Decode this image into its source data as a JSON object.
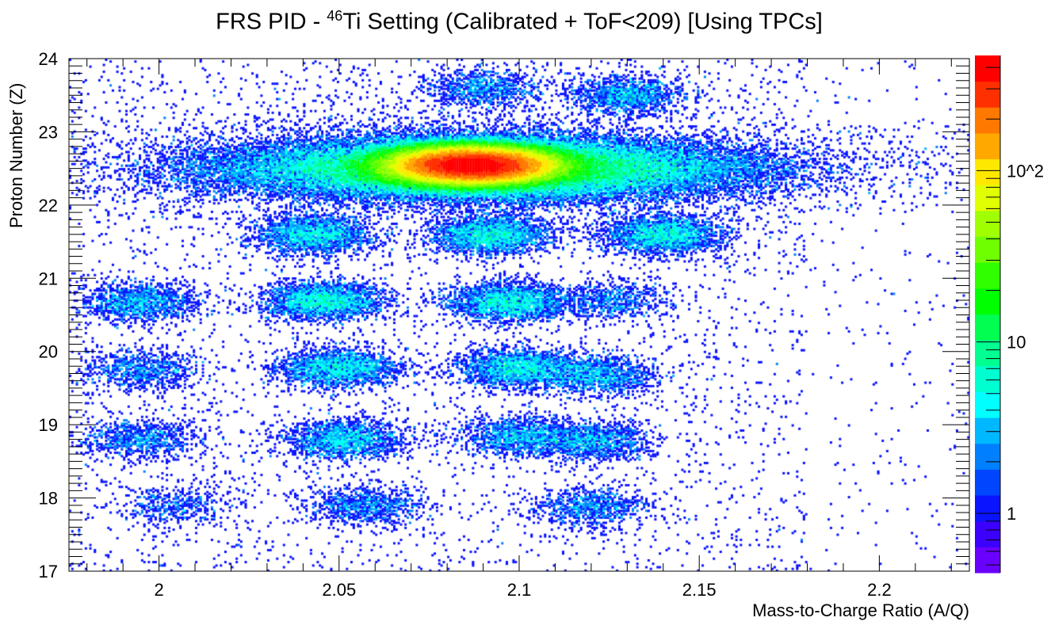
{
  "chart_data": {
    "type": "heatmap",
    "title_prefix": "FRS PID - ",
    "title_sup": "46",
    "title_suffix": "Ti Setting (Calibrated + ToF<209) [Using TPCs]",
    "xlabel": "Mass-to-Charge Ratio (A/Q)",
    "ylabel": "Proton Number (Z)",
    "xlim": [
      1.975,
      2.225
    ],
    "ylim": [
      17,
      24
    ],
    "xticks": [
      "2",
      "2.05",
      "2.1",
      "2.15",
      "2.2"
    ],
    "yticks": [
      "17",
      "18",
      "19",
      "20",
      "21",
      "22",
      "23",
      "24"
    ],
    "z_scale": "log",
    "zlim": [
      0.45,
      470
    ],
    "z_ticks": [
      "1",
      "10",
      "10^2"
    ],
    "grid": false,
    "palette": [
      "#6a00ff",
      "#3c00ff",
      "#0a14ff",
      "#0046ff",
      "#0080ff",
      "#00b8ff",
      "#00ffff",
      "#00ffd0",
      "#00ff90",
      "#00ff50",
      "#00ff00",
      "#30ff00",
      "#70ff00",
      "#a0ff00",
      "#e0ff00",
      "#ffe800",
      "#ffa800",
      "#ff7800",
      "#ff3000",
      "#ff0000"
    ],
    "clusters": [
      {
        "aq": 2.087,
        "z": 22.55,
        "peak": 450
      },
      {
        "aq": 2.09,
        "z": 22.5,
        "peak": 15
      },
      {
        "aq": 2.13,
        "z": 23.5,
        "peak": 3
      },
      {
        "aq": 2.09,
        "z": 23.6,
        "peak": 2
      },
      {
        "aq": 2.043,
        "z": 21.6,
        "peak": 5
      },
      {
        "aq": 2.092,
        "z": 21.6,
        "peak": 6
      },
      {
        "aq": 2.14,
        "z": 21.6,
        "peak": 6
      },
      {
        "aq": 1.995,
        "z": 20.68,
        "peak": 3
      },
      {
        "aq": 2.046,
        "z": 20.7,
        "peak": 6
      },
      {
        "aq": 2.097,
        "z": 20.68,
        "peak": 6
      },
      {
        "aq": 2.125,
        "z": 20.7,
        "peak": 1.5
      },
      {
        "aq": 1.995,
        "z": 19.75,
        "peak": 2
      },
      {
        "aq": 2.05,
        "z": 19.78,
        "peak": 5
      },
      {
        "aq": 2.1,
        "z": 19.78,
        "peak": 5
      },
      {
        "aq": 2.122,
        "z": 19.68,
        "peak": 3
      },
      {
        "aq": 1.995,
        "z": 18.8,
        "peak": 2
      },
      {
        "aq": 2.052,
        "z": 18.8,
        "peak": 4
      },
      {
        "aq": 2.1,
        "z": 18.85,
        "peak": 3
      },
      {
        "aq": 2.12,
        "z": 18.78,
        "peak": 3
      },
      {
        "aq": 2.005,
        "z": 17.9,
        "peak": 1
      },
      {
        "aq": 2.057,
        "z": 17.9,
        "peak": 2
      },
      {
        "aq": 2.12,
        "z": 17.88,
        "peak": 2
      }
    ]
  }
}
